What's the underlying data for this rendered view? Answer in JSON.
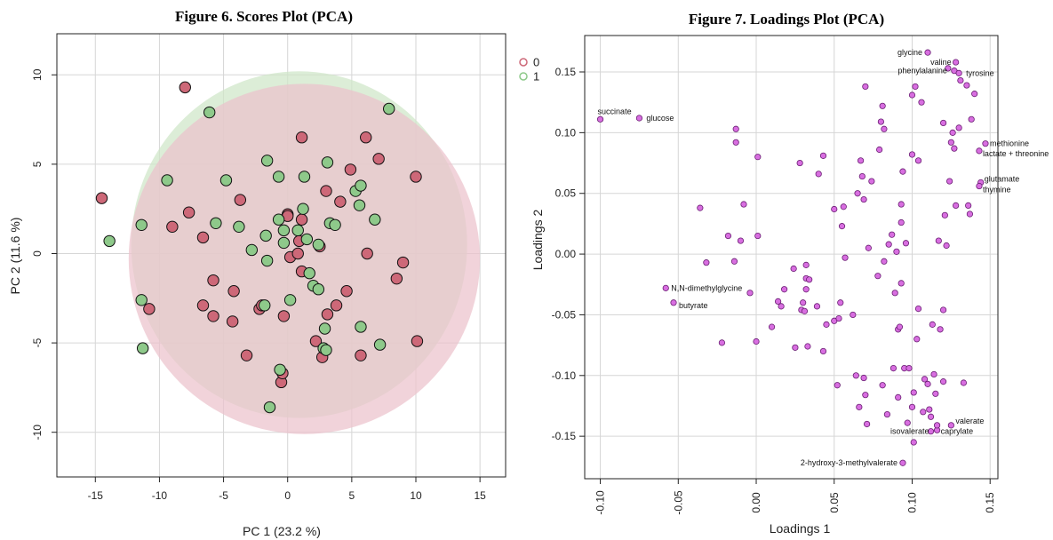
{
  "chart_data": [
    {
      "type": "scatter",
      "title": "Figure 6. Scores Plot (PCA)",
      "xlabel": "PC 1 (23.2 %)",
      "ylabel": "PC 2 (11.6 %)",
      "xlim": [
        -18,
        17
      ],
      "ylim": [
        -12.5,
        12.3
      ],
      "xticks": [
        -15,
        -10,
        -5,
        0,
        5,
        10,
        15
      ],
      "yticks": [
        -10,
        -5,
        0,
        5,
        10
      ],
      "grid": true,
      "legend": "top-right",
      "ellipses": [
        {
          "name": "1",
          "color": "#cfe6c8",
          "cx": 0.9,
          "cy": 0.5,
          "rx": 13.1,
          "ry": 9.7
        },
        {
          "name": "0",
          "color": "#ecc2cc",
          "cx": 1.3,
          "cy": -0.3,
          "rx": 13.7,
          "ry": 9.8
        }
      ],
      "series": [
        {
          "name": "0",
          "color": "#cd6878",
          "points": [
            [
              -14.5,
              3.1
            ],
            [
              -8.0,
              9.3
            ],
            [
              -10.8,
              -3.1
            ],
            [
              -9.0,
              1.5
            ],
            [
              -7.7,
              2.3
            ],
            [
              -6.6,
              0.9
            ],
            [
              -6.6,
              -2.9
            ],
            [
              -5.8,
              -1.5
            ],
            [
              -5.8,
              -3.5
            ],
            [
              -4.2,
              -2.1
            ],
            [
              -4.3,
              -3.8
            ],
            [
              -3.7,
              3.0
            ],
            [
              -3.2,
              -5.7
            ],
            [
              -2.2,
              -3.1
            ],
            [
              -2.0,
              -2.9
            ],
            [
              -0.3,
              -3.5
            ],
            [
              0.0,
              2.2
            ],
            [
              0.2,
              -0.2
            ],
            [
              0.8,
              0.0
            ],
            [
              0.9,
              0.7
            ],
            [
              1.1,
              1.9
            ],
            [
              1.1,
              6.5
            ],
            [
              1.1,
              -1.0
            ],
            [
              2.2,
              -4.9
            ],
            [
              2.5,
              0.4
            ],
            [
              2.7,
              -5.8
            ],
            [
              3.1,
              -3.4
            ],
            [
              3.8,
              -2.9
            ],
            [
              4.1,
              2.9
            ],
            [
              4.6,
              -2.1
            ],
            [
              4.9,
              4.7
            ],
            [
              5.7,
              -5.7
            ],
            [
              6.1,
              6.5
            ],
            [
              6.2,
              0.0
            ],
            [
              7.1,
              5.3
            ],
            [
              8.5,
              -1.4
            ],
            [
              9.0,
              -0.5
            ],
            [
              10.0,
              4.3
            ],
            [
              10.1,
              -4.9
            ],
            [
              -0.5,
              -7.2
            ],
            [
              -0.4,
              -6.7
            ],
            [
              3.0,
              3.5
            ],
            [
              0.0,
              2.1
            ]
          ]
        },
        {
          "name": "1",
          "color": "#8ec98a",
          "points": [
            [
              -13.9,
              0.7
            ],
            [
              -11.4,
              1.6
            ],
            [
              -11.4,
              -2.6
            ],
            [
              -11.3,
              -5.3
            ],
            [
              -9.4,
              4.1
            ],
            [
              -6.1,
              7.9
            ],
            [
              -5.6,
              1.7
            ],
            [
              -4.8,
              4.1
            ],
            [
              -3.8,
              1.5
            ],
            [
              -2.8,
              0.2
            ],
            [
              -1.8,
              -2.9
            ],
            [
              -1.7,
              1.0
            ],
            [
              -1.6,
              -0.4
            ],
            [
              -1.6,
              5.2
            ],
            [
              -1.4,
              -8.6
            ],
            [
              -0.7,
              4.3
            ],
            [
              -0.7,
              1.9
            ],
            [
              -0.6,
              -6.5
            ],
            [
              -0.3,
              1.3
            ],
            [
              0.2,
              -2.6
            ],
            [
              0.8,
              1.3
            ],
            [
              1.2,
              2.5
            ],
            [
              1.3,
              4.3
            ],
            [
              1.5,
              0.8
            ],
            [
              1.7,
              -1.1
            ],
            [
              2.0,
              -1.8
            ],
            [
              2.4,
              -2.0
            ],
            [
              2.4,
              0.5
            ],
            [
              2.8,
              -5.3
            ],
            [
              2.9,
              -4.2
            ],
            [
              3.1,
              5.1
            ],
            [
              3.3,
              1.7
            ],
            [
              3.7,
              1.6
            ],
            [
              5.3,
              3.5
            ],
            [
              5.6,
              2.7
            ],
            [
              5.7,
              3.8
            ],
            [
              5.7,
              -4.1
            ],
            [
              6.8,
              1.9
            ],
            [
              7.2,
              -5.1
            ],
            [
              7.9,
              8.1
            ],
            [
              -0.3,
              0.6
            ],
            [
              3.0,
              -5.4
            ]
          ]
        }
      ]
    },
    {
      "type": "scatter",
      "title": "Figure 7. Loadings Plot (PCA)",
      "xlabel": "Loadings 1",
      "ylabel": "Loadings 2",
      "xlim": [
        -0.11,
        0.155
      ],
      "ylim": [
        -0.185,
        0.18
      ],
      "xticks": [
        "-0.10",
        "-0.05",
        "0.00",
        "0.05",
        "0.10",
        "0.15"
      ],
      "yticks": [
        "-0.15",
        "-0.10",
        "-0.05",
        "0.00",
        "0.05",
        "0.10",
        "0.15"
      ],
      "grid": true,
      "point_color": "#d86ee0",
      "points": [
        {
          "x": -0.1,
          "y": 0.111,
          "label": "succinate"
        },
        {
          "x": -0.075,
          "y": 0.112,
          "label": "glucose"
        },
        {
          "x": -0.058,
          "y": -0.028,
          "label": "N,N-dimethylglycine"
        },
        {
          "x": -0.053,
          "y": -0.04,
          "label": "butyrate"
        },
        {
          "x": 0.11,
          "y": 0.166,
          "label": "glycine"
        },
        {
          "x": 0.128,
          "y": 0.158,
          "label": "valine"
        },
        {
          "x": 0.127,
          "y": 0.151,
          "label": "phenylalanine"
        },
        {
          "x": 0.13,
          "y": 0.149,
          "label": "tyrosine"
        },
        {
          "x": 0.147,
          "y": 0.091,
          "label": "methionine"
        },
        {
          "x": 0.143,
          "y": 0.085,
          "label": "lactate + threonine"
        },
        {
          "x": 0.144,
          "y": 0.059,
          "label": "glutamate"
        },
        {
          "x": 0.143,
          "y": 0.056,
          "label": "thymine"
        },
        {
          "x": 0.112,
          "y": -0.146,
          "label": "isovalerate"
        },
        {
          "x": 0.125,
          "y": -0.141,
          "label": "valerate"
        },
        {
          "x": 0.116,
          "y": -0.145,
          "label": "caprylate"
        },
        {
          "x": 0.094,
          "y": -0.172,
          "label": "2-hydroxy-3-methylvalerate"
        },
        {
          "x": -0.036,
          "y": 0.038
        },
        {
          "x": -0.032,
          "y": -0.007
        },
        {
          "x": -0.022,
          "y": -0.073
        },
        {
          "x": -0.018,
          "y": 0.015
        },
        {
          "x": -0.014,
          "y": -0.006
        },
        {
          "x": -0.013,
          "y": 0.092
        },
        {
          "x": -0.013,
          "y": 0.103
        },
        {
          "x": -0.01,
          "y": 0.011
        },
        {
          "x": -0.008,
          "y": 0.041
        },
        {
          "x": -0.004,
          "y": -0.032
        },
        {
          "x": 0.001,
          "y": 0.08
        },
        {
          "x": 0.001,
          "y": 0.015
        },
        {
          "x": 0.0,
          "y": -0.072
        },
        {
          "x": 0.01,
          "y": -0.06
        },
        {
          "x": 0.014,
          "y": -0.039
        },
        {
          "x": 0.016,
          "y": -0.043
        },
        {
          "x": 0.018,
          "y": -0.029
        },
        {
          "x": 0.024,
          "y": -0.012
        },
        {
          "x": 0.025,
          "y": -0.077
        },
        {
          "x": 0.028,
          "y": 0.075
        },
        {
          "x": 0.029,
          "y": -0.046
        },
        {
          "x": 0.03,
          "y": -0.04
        },
        {
          "x": 0.031,
          "y": -0.047
        },
        {
          "x": 0.032,
          "y": -0.029
        },
        {
          "x": 0.032,
          "y": -0.02
        },
        {
          "x": 0.034,
          "y": -0.021
        },
        {
          "x": 0.032,
          "y": -0.009
        },
        {
          "x": 0.033,
          "y": -0.076
        },
        {
          "x": 0.039,
          "y": -0.043
        },
        {
          "x": 0.04,
          "y": 0.066
        },
        {
          "x": 0.043,
          "y": 0.081
        },
        {
          "x": 0.043,
          "y": -0.08
        },
        {
          "x": 0.045,
          "y": -0.058
        },
        {
          "x": 0.05,
          "y": -0.055
        },
        {
          "x": 0.05,
          "y": 0.037
        },
        {
          "x": 0.052,
          "y": -0.108
        },
        {
          "x": 0.053,
          "y": -0.053
        },
        {
          "x": 0.054,
          "y": -0.04
        },
        {
          "x": 0.055,
          "y": 0.023
        },
        {
          "x": 0.056,
          "y": 0.039
        },
        {
          "x": 0.057,
          "y": -0.003
        },
        {
          "x": 0.062,
          "y": -0.05
        },
        {
          "x": 0.064,
          "y": -0.1
        },
        {
          "x": 0.065,
          "y": 0.05
        },
        {
          "x": 0.066,
          "y": -0.126
        },
        {
          "x": 0.067,
          "y": 0.077
        },
        {
          "x": 0.068,
          "y": 0.064
        },
        {
          "x": 0.069,
          "y": 0.045
        },
        {
          "x": 0.069,
          "y": -0.102
        },
        {
          "x": 0.07,
          "y": 0.138
        },
        {
          "x": 0.07,
          "y": -0.116
        },
        {
          "x": 0.071,
          "y": -0.14
        },
        {
          "x": 0.072,
          "y": 0.005
        },
        {
          "x": 0.074,
          "y": 0.06
        },
        {
          "x": 0.078,
          "y": -0.018
        },
        {
          "x": 0.079,
          "y": 0.086
        },
        {
          "x": 0.08,
          "y": 0.109
        },
        {
          "x": 0.081,
          "y": 0.122
        },
        {
          "x": 0.081,
          "y": -0.108
        },
        {
          "x": 0.082,
          "y": 0.103
        },
        {
          "x": 0.082,
          "y": -0.006
        },
        {
          "x": 0.084,
          "y": -0.132
        },
        {
          "x": 0.085,
          "y": 0.008
        },
        {
          "x": 0.087,
          "y": 0.016
        },
        {
          "x": 0.088,
          "y": -0.094
        },
        {
          "x": 0.089,
          "y": -0.032
        },
        {
          "x": 0.09,
          "y": 0.002
        },
        {
          "x": 0.091,
          "y": -0.062
        },
        {
          "x": 0.091,
          "y": -0.118
        },
        {
          "x": 0.092,
          "y": -0.06
        },
        {
          "x": 0.093,
          "y": 0.041
        },
        {
          "x": 0.093,
          "y": 0.026
        },
        {
          "x": 0.093,
          "y": -0.024
        },
        {
          "x": 0.094,
          "y": 0.068
        },
        {
          "x": 0.095,
          "y": -0.094
        },
        {
          "x": 0.096,
          "y": 0.009
        },
        {
          "x": 0.097,
          "y": -0.139
        },
        {
          "x": 0.098,
          "y": -0.094
        },
        {
          "x": 0.1,
          "y": 0.131
        },
        {
          "x": 0.1,
          "y": 0.082
        },
        {
          "x": 0.1,
          "y": -0.126
        },
        {
          "x": 0.101,
          "y": -0.114
        },
        {
          "x": 0.101,
          "y": -0.155
        },
        {
          "x": 0.102,
          "y": 0.138
        },
        {
          "x": 0.103,
          "y": -0.07
        },
        {
          "x": 0.104,
          "y": 0.077
        },
        {
          "x": 0.104,
          "y": -0.045
        },
        {
          "x": 0.106,
          "y": 0.125
        },
        {
          "x": 0.107,
          "y": -0.13
        },
        {
          "x": 0.108,
          "y": -0.103
        },
        {
          "x": 0.11,
          "y": -0.107
        },
        {
          "x": 0.111,
          "y": -0.128
        },
        {
          "x": 0.112,
          "y": -0.134
        },
        {
          "x": 0.113,
          "y": -0.058
        },
        {
          "x": 0.114,
          "y": -0.099
        },
        {
          "x": 0.115,
          "y": -0.115
        },
        {
          "x": 0.116,
          "y": -0.141
        },
        {
          "x": 0.117,
          "y": 0.011
        },
        {
          "x": 0.118,
          "y": -0.062
        },
        {
          "x": 0.12,
          "y": 0.108
        },
        {
          "x": 0.12,
          "y": -0.105
        },
        {
          "x": 0.121,
          "y": 0.032
        },
        {
          "x": 0.122,
          "y": 0.007
        },
        {
          "x": 0.123,
          "y": 0.153
        },
        {
          "x": 0.124,
          "y": 0.06
        },
        {
          "x": 0.125,
          "y": 0.092
        },
        {
          "x": 0.126,
          "y": 0.1
        },
        {
          "x": 0.127,
          "y": 0.087
        },
        {
          "x": 0.128,
          "y": 0.04
        },
        {
          "x": 0.13,
          "y": 0.104
        },
        {
          "x": 0.131,
          "y": 0.143
        },
        {
          "x": 0.133,
          "y": -0.106
        },
        {
          "x": 0.135,
          "y": 0.139
        },
        {
          "x": 0.136,
          "y": 0.04
        },
        {
          "x": 0.137,
          "y": 0.033
        },
        {
          "x": 0.138,
          "y": 0.111
        },
        {
          "x": 0.14,
          "y": 0.132
        },
        {
          "x": 0.12,
          "y": -0.046
        }
      ]
    }
  ]
}
